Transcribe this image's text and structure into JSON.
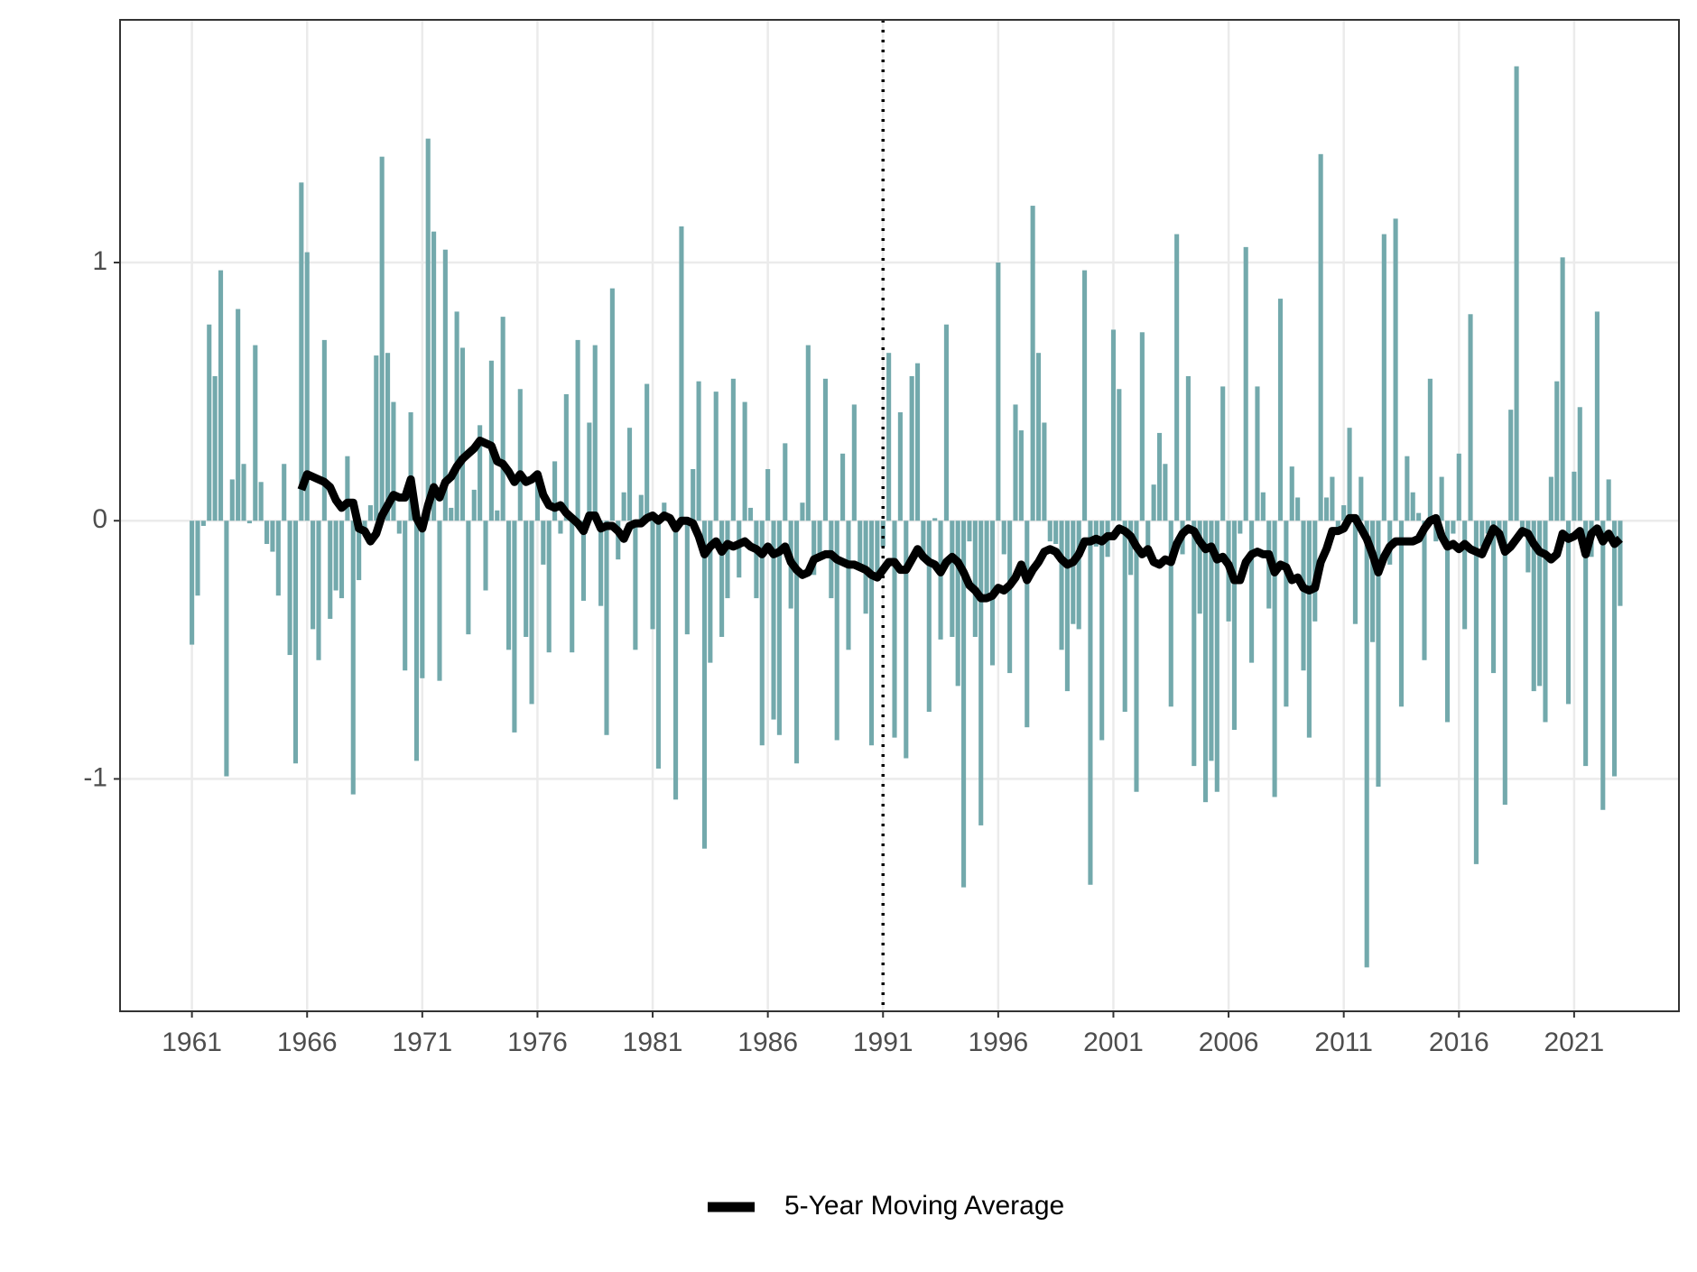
{
  "chart_data": {
    "type": "bar-line",
    "x": [
      1961,
      1961.25,
      1961.5,
      1961.75,
      1962,
      1962.25,
      1962.5,
      1962.75,
      1963,
      1963.25,
      1963.5,
      1963.75,
      1964,
      1964.25,
      1964.5,
      1964.75,
      1965,
      1965.25,
      1965.5,
      1965.75,
      1966,
      1966.25,
      1966.5,
      1966.75,
      1967,
      1967.25,
      1967.5,
      1967.75,
      1968,
      1968.25,
      1968.5,
      1968.75,
      1969,
      1969.25,
      1969.5,
      1969.75,
      1970,
      1970.25,
      1970.5,
      1970.75,
      1971,
      1971.25,
      1971.5,
      1971.75,
      1972,
      1972.25,
      1972.5,
      1972.75,
      1973,
      1973.25,
      1973.5,
      1973.75,
      1974,
      1974.25,
      1974.5,
      1974.75,
      1975,
      1975.25,
      1975.5,
      1975.75,
      1976,
      1976.25,
      1976.5,
      1976.75,
      1977,
      1977.25,
      1977.5,
      1977.75,
      1978,
      1978.25,
      1978.5,
      1978.75,
      1979,
      1979.25,
      1979.5,
      1979.75,
      1980,
      1980.25,
      1980.5,
      1980.75,
      1981,
      1981.25,
      1981.5,
      1981.75,
      1982,
      1982.25,
      1982.5,
      1982.75,
      1983,
      1983.25,
      1983.5,
      1983.75,
      1984,
      1984.25,
      1984.5,
      1984.75,
      1985,
      1985.25,
      1985.5,
      1985.75,
      1986,
      1986.25,
      1986.5,
      1986.75,
      1987,
      1987.25,
      1987.5,
      1987.75,
      1988,
      1988.25,
      1988.5,
      1988.75,
      1989,
      1989.25,
      1989.5,
      1989.75,
      1990,
      1990.25,
      1990.5,
      1990.75,
      1991,
      1991.25,
      1991.5,
      1991.75,
      1992,
      1992.25,
      1992.5,
      1992.75,
      1993,
      1993.25,
      1993.5,
      1993.75,
      1994,
      1994.25,
      1994.5,
      1994.75,
      1995,
      1995.25,
      1995.5,
      1995.75,
      1996,
      1996.25,
      1996.5,
      1996.75,
      1997,
      1997.25,
      1997.5,
      1997.75,
      1998,
      1998.25,
      1998.5,
      1998.75,
      1999,
      1999.25,
      1999.5,
      1999.75,
      2000,
      2000.25,
      2000.5,
      2000.75,
      2001,
      2001.25,
      2001.5,
      2001.75,
      2002,
      2002.25,
      2002.5,
      2002.75,
      2003,
      2003.25,
      2003.5,
      2003.75,
      2004,
      2004.25,
      2004.5,
      2004.75,
      2005,
      2005.25,
      2005.5,
      2005.75,
      2006,
      2006.25,
      2006.5,
      2006.75,
      2007,
      2007.25,
      2007.5,
      2007.75,
      2008,
      2008.25,
      2008.5,
      2008.75,
      2009,
      2009.25,
      2009.5,
      2009.75,
      2010,
      2010.25,
      2010.5,
      2010.75,
      2011,
      2011.25,
      2011.5,
      2011.75,
      2012,
      2012.25,
      2012.5,
      2012.75,
      2013,
      2013.25,
      2013.5,
      2013.75,
      2014,
      2014.25,
      2014.5,
      2014.75,
      2015,
      2015.25,
      2015.5,
      2015.75,
      2016,
      2016.25,
      2016.5,
      2016.75,
      2017,
      2017.25,
      2017.5,
      2017.75,
      2018,
      2018.25,
      2018.5,
      2018.75,
      2019,
      2019.25,
      2019.5,
      2019.75,
      2020,
      2020.25,
      2020.5,
      2020.75,
      2021,
      2021.25,
      2021.5,
      2021.75,
      2022,
      2022.25,
      2022.5,
      2022.75,
      2023
    ],
    "series": [
      {
        "type": "bar",
        "color": "#73a9ac",
        "values": [
          -0.48,
          -0.29,
          -0.02,
          0.76,
          0.56,
          0.97,
          -0.99,
          0.16,
          0.82,
          0.22,
          -0.01,
          0.68,
          0.15,
          -0.09,
          -0.12,
          -0.29,
          0.22,
          -0.52,
          -0.94,
          1.31,
          1.04,
          -0.42,
          -0.54,
          0.7,
          -0.38,
          -0.27,
          -0.3,
          0.25,
          -1.06,
          -0.23,
          -0.05,
          0.06,
          0.64,
          1.41,
          0.65,
          0.46,
          -0.05,
          -0.58,
          0.42,
          -0.93,
          -0.61,
          1.48,
          1.12,
          -0.62,
          1.05,
          0.05,
          0.81,
          0.67,
          -0.44,
          0.12,
          0.37,
          -0.27,
          0.62,
          0.04,
          0.79,
          -0.5,
          -0.82,
          0.51,
          -0.45,
          -0.71,
          0.15,
          -0.17,
          -0.51,
          0.23,
          -0.05,
          0.49,
          -0.51,
          0.7,
          -0.31,
          0.38,
          0.68,
          -0.33,
          -0.83,
          0.9,
          -0.15,
          0.11,
          0.36,
          -0.5,
          0.1,
          0.53,
          -0.42,
          -0.96,
          0.07,
          0.02,
          -1.08,
          1.14,
          -0.44,
          0.2,
          0.54,
          -1.27,
          -0.55,
          0.5,
          -0.45,
          -0.3,
          0.55,
          -0.22,
          0.46,
          0.05,
          -0.3,
          -0.87,
          0.2,
          -0.77,
          -0.83,
          0.3,
          -0.34,
          -0.94,
          0.07,
          0.68,
          -0.21,
          -0.15,
          0.55,
          -0.3,
          -0.85,
          0.26,
          -0.5,
          0.45,
          -0.18,
          -0.36,
          -0.87,
          -0.2,
          -0.1,
          0.65,
          -0.84,
          0.42,
          -0.92,
          0.56,
          0.61,
          -0.15,
          -0.74,
          0.01,
          -0.46,
          0.76,
          -0.45,
          -0.64,
          -1.42,
          -0.08,
          -0.45,
          -1.18,
          -0.3,
          -0.56,
          1.0,
          -0.13,
          -0.59,
          0.45,
          0.35,
          -0.8,
          1.22,
          0.65,
          0.38,
          -0.08,
          -0.09,
          -0.5,
          -0.66,
          -0.4,
          -0.42,
          0.97,
          -1.41,
          -0.1,
          -0.85,
          -0.14,
          0.74,
          0.51,
          -0.74,
          -0.21,
          -1.05,
          0.73,
          -0.14,
          0.14,
          0.34,
          0.22,
          -0.72,
          1.11,
          -0.13,
          0.56,
          -0.95,
          -0.36,
          -1.09,
          -0.93,
          -1.05,
          0.52,
          -0.39,
          -0.81,
          -0.05,
          1.06,
          -0.55,
          0.52,
          0.11,
          -0.34,
          -1.07,
          0.86,
          -0.72,
          0.21,
          0.09,
          -0.58,
          -0.84,
          -0.39,
          1.42,
          0.09,
          0.17,
          -0.05,
          0.06,
          0.36,
          -0.4,
          0.17,
          -1.73,
          -0.47,
          -1.03,
          1.11,
          -0.17,
          1.17,
          -0.72,
          0.25,
          0.11,
          0.03,
          -0.54,
          0.55,
          -0.08,
          0.17,
          -0.78,
          -0.05,
          0.26,
          -0.42,
          0.8,
          -1.33,
          -0.1,
          -0.05,
          -0.59,
          -0.05,
          -1.1,
          0.43,
          1.76,
          -0.06,
          -0.2,
          -0.66,
          -0.64,
          -0.78,
          0.17,
          0.54,
          1.02,
          -0.71,
          0.19,
          0.44,
          -0.95,
          -0.14,
          0.81,
          -1.12,
          0.16,
          -0.99,
          -0.33
        ]
      },
      {
        "type": "line",
        "name": "5-Year Moving Average",
        "color": "#000000",
        "values": [
          null,
          null,
          null,
          null,
          null,
          null,
          null,
          null,
          null,
          null,
          null,
          null,
          null,
          null,
          null,
          null,
          null,
          null,
          null,
          0.12,
          0.18,
          0.17,
          0.16,
          0.15,
          0.13,
          0.08,
          0.05,
          0.07,
          0.07,
          -0.03,
          -0.04,
          -0.08,
          -0.05,
          0.02,
          0.06,
          0.1,
          0.09,
          0.09,
          0.16,
          0.01,
          -0.03,
          0.06,
          0.13,
          0.09,
          0.15,
          0.17,
          0.21,
          0.24,
          0.26,
          0.28,
          0.31,
          0.3,
          0.29,
          0.23,
          0.22,
          0.19,
          0.15,
          0.18,
          0.15,
          0.16,
          0.18,
          0.1,
          0.06,
          0.05,
          0.06,
          0.03,
          0.01,
          -0.01,
          -0.04,
          0.02,
          0.02,
          -0.03,
          -0.02,
          -0.02,
          -0.04,
          -0.07,
          -0.02,
          -0.01,
          -0.01,
          0.01,
          0.02,
          0.0,
          0.02,
          0.01,
          -0.03,
          0.0,
          0.0,
          -0.01,
          -0.06,
          -0.13,
          -0.1,
          -0.08,
          -0.12,
          -0.09,
          -0.1,
          -0.09,
          -0.08,
          -0.1,
          -0.11,
          -0.13,
          -0.1,
          -0.13,
          -0.12,
          -0.1,
          -0.16,
          -0.19,
          -0.21,
          -0.2,
          -0.15,
          -0.14,
          -0.13,
          -0.13,
          -0.15,
          -0.16,
          -0.17,
          -0.17,
          -0.18,
          -0.19,
          -0.21,
          -0.22,
          -0.19,
          -0.16,
          -0.16,
          -0.19,
          -0.19,
          -0.15,
          -0.11,
          -0.14,
          -0.16,
          -0.17,
          -0.2,
          -0.16,
          -0.14,
          -0.16,
          -0.2,
          -0.25,
          -0.27,
          -0.3,
          -0.3,
          -0.29,
          -0.26,
          -0.27,
          -0.25,
          -0.22,
          -0.17,
          -0.23,
          -0.19,
          -0.16,
          -0.12,
          -0.11,
          -0.12,
          -0.15,
          -0.17,
          -0.16,
          -0.13,
          -0.08,
          -0.08,
          -0.07,
          -0.08,
          -0.06,
          -0.06,
          -0.03,
          -0.04,
          -0.06,
          -0.1,
          -0.13,
          -0.11,
          -0.16,
          -0.17,
          -0.15,
          -0.16,
          -0.09,
          -0.05,
          -0.03,
          -0.04,
          -0.08,
          -0.11,
          -0.1,
          -0.15,
          -0.14,
          -0.17,
          -0.23,
          -0.23,
          -0.16,
          -0.13,
          -0.12,
          -0.13,
          -0.13,
          -0.2,
          -0.17,
          -0.18,
          -0.23,
          -0.22,
          -0.26,
          -0.27,
          -0.26,
          -0.16,
          -0.11,
          -0.04,
          -0.04,
          -0.03,
          0.01,
          0.01,
          -0.03,
          -0.07,
          -0.13,
          -0.2,
          -0.14,
          -0.1,
          -0.08,
          -0.08,
          -0.08,
          -0.08,
          -0.07,
          -0.03,
          0.0,
          0.01,
          -0.06,
          -0.1,
          -0.09,
          -0.11,
          -0.09,
          -0.11,
          -0.12,
          -0.13,
          -0.08,
          -0.03,
          -0.05,
          -0.12,
          -0.1,
          -0.07,
          -0.04,
          -0.05,
          -0.09,
          -0.12,
          -0.13,
          -0.15,
          -0.13,
          -0.05,
          -0.07,
          -0.06,
          -0.04,
          -0.13,
          -0.05,
          -0.03,
          -0.08,
          -0.05,
          -0.09,
          -0.07
        ]
      }
    ],
    "vline": 1991,
    "xlim": [
      1957.88,
      2025.55
    ],
    "xticks": [
      1961,
      1966,
      1971,
      1976,
      1981,
      1986,
      1991,
      1996,
      2001,
      2006,
      2011,
      2016,
      2021
    ],
    "ylim": [
      -1.9,
      1.94
    ],
    "yticks": [
      -1,
      0,
      1
    ],
    "grid": true,
    "legend": "bottom"
  }
}
